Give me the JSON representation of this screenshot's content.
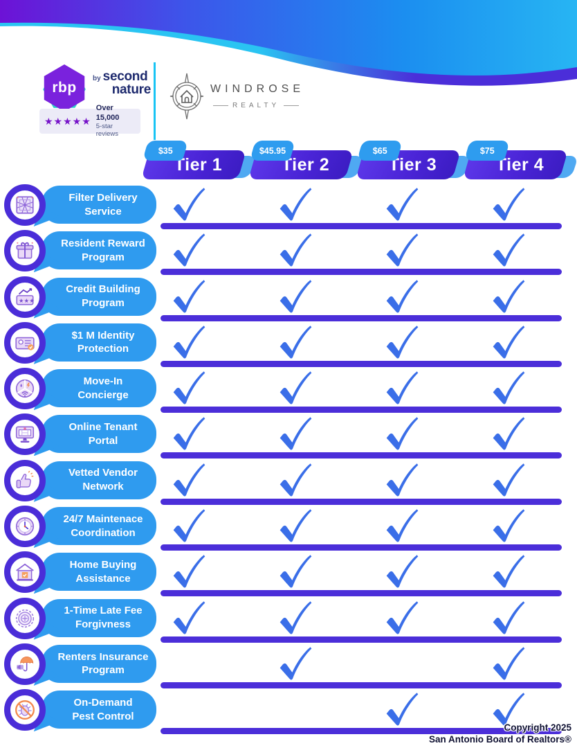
{
  "header": {
    "rbp": {
      "mark": "rbp",
      "by": "by",
      "line1": "second",
      "line2": "nature"
    },
    "reviews": {
      "stars": "★★★★★",
      "line1": "Over 15,000",
      "line2": "5-star reviews"
    },
    "partner": {
      "name": "WINDROSE",
      "subtitle": "REALTY"
    }
  },
  "tiers": [
    {
      "name": "Tier 1",
      "price": "$35"
    },
    {
      "name": "Tier 2",
      "price": "$45.95"
    },
    {
      "name": "Tier 3",
      "price": "$65"
    },
    {
      "name": "Tier 4",
      "price": "$75"
    }
  ],
  "features": [
    {
      "line1": "Filter Delivery",
      "line2": "Service",
      "icon": "filter-icon",
      "tiers": [
        true,
        true,
        true,
        true
      ]
    },
    {
      "line1": "Resident Reward",
      "line2": "Program",
      "icon": "gift-icon",
      "tiers": [
        true,
        true,
        true,
        true
      ]
    },
    {
      "line1": "Credit Building",
      "line2": "Program",
      "icon": "credit-icon",
      "tiers": [
        true,
        true,
        true,
        true
      ]
    },
    {
      "line1": "$1 M Identity",
      "line2": "Protection",
      "icon": "id-card-icon",
      "tiers": [
        true,
        true,
        true,
        true
      ]
    },
    {
      "line1": "Move-In",
      "line2": "Concierge",
      "icon": "utilities-icon",
      "tiers": [
        true,
        true,
        true,
        true
      ]
    },
    {
      "line1": "Online Tenant",
      "line2": "Portal",
      "icon": "monitor-icon",
      "tiers": [
        true,
        true,
        true,
        true
      ]
    },
    {
      "line1": "Vetted Vendor",
      "line2": "Network",
      "icon": "thumbs-up-icon",
      "tiers": [
        true,
        true,
        true,
        true
      ]
    },
    {
      "line1": "24/7 Maintenace",
      "line2": "Coordination",
      "icon": "clock-icon",
      "tiers": [
        true,
        true,
        true,
        true
      ]
    },
    {
      "line1": "Home Buying",
      "line2": "Assistance",
      "icon": "house-icon",
      "tiers": [
        true,
        true,
        true,
        true
      ]
    },
    {
      "line1": "1-Time Late Fee",
      "line2": "Forgivness",
      "icon": "stamp-icon",
      "tiers": [
        true,
        true,
        true,
        true
      ]
    },
    {
      "line1": "Renters Insurance",
      "line2": "Program",
      "icon": "umbrella-icon",
      "tiers": [
        false,
        true,
        false,
        true
      ]
    },
    {
      "line1": "On-Demand",
      "line2": "Pest Control",
      "icon": "no-pests-icon",
      "tiers": [
        false,
        false,
        true,
        true
      ]
    }
  ],
  "footer": {
    "line1": "Copyright 2025",
    "line2": "San Antonio Board of Realtors®"
  },
  "colors": {
    "pill_blue": "#2f9bef",
    "indigo": "#4b2ed9",
    "check_blue": "#3a6ee8",
    "tier_gradient_start": "#5d38ea",
    "tier_gradient_end": "#3b1cc2",
    "price_tag_blue": "#2e9cef",
    "accent_blue": "#4fa9f2",
    "wave_purple": "#6d12d6",
    "wave_blue": "#1b8ef0",
    "wave_cyan_stripe": "#2ac4f2",
    "star_purple": "#7714c9",
    "brand_navy": "#1e2a6e",
    "teal": "#2bd3c9"
  }
}
